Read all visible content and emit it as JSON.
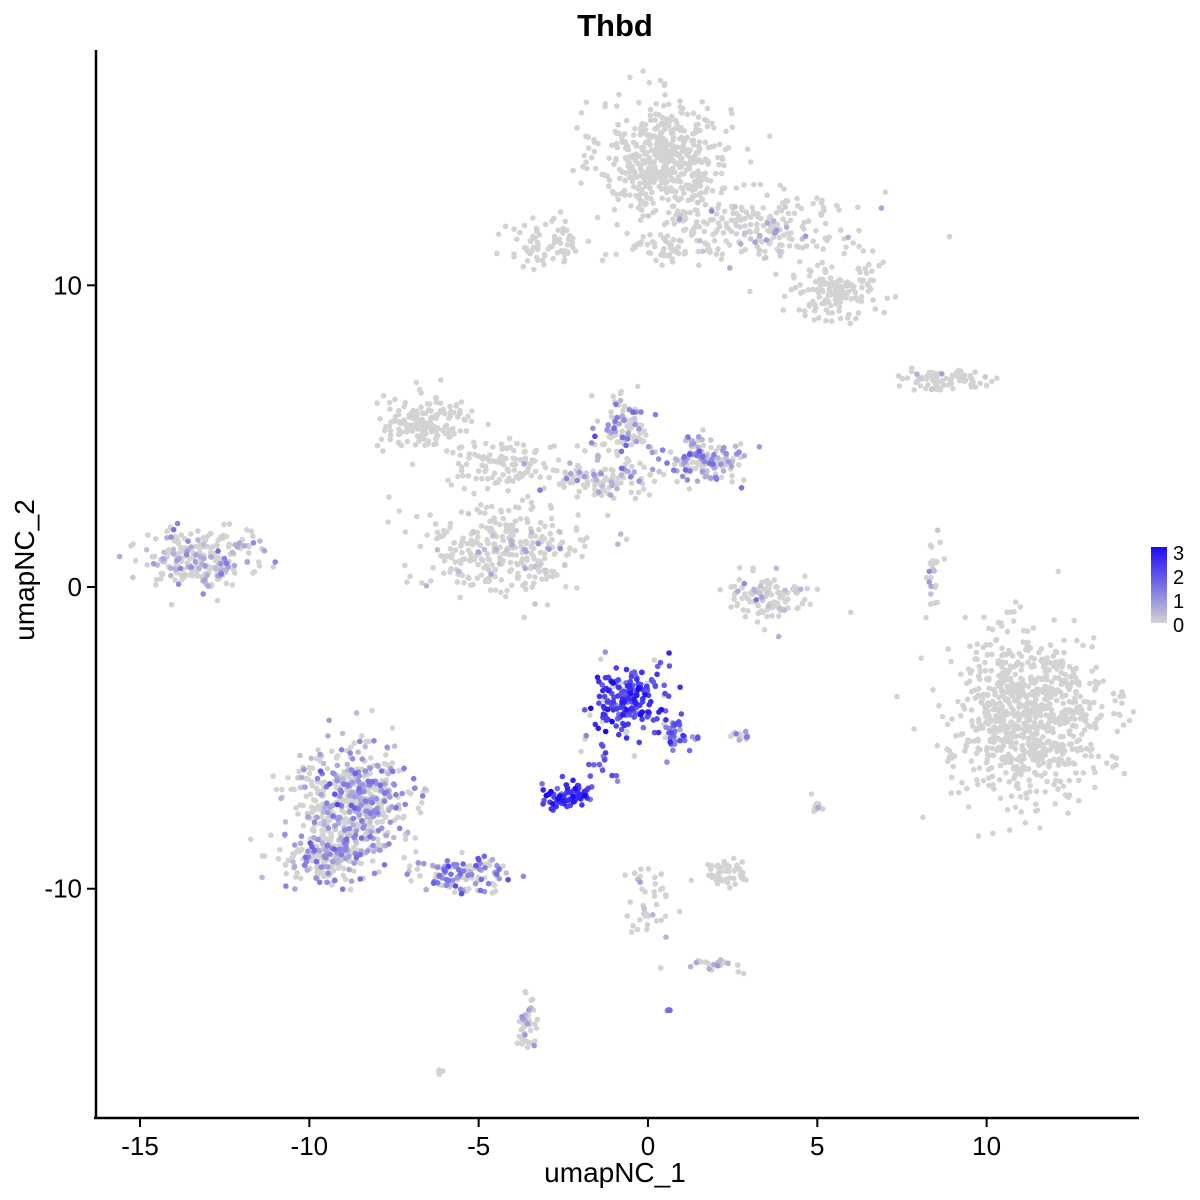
{
  "chart_data": {
    "type": "scatter",
    "title": "Thbd",
    "xlabel": "umapNC_1",
    "ylabel": "umapNC_2",
    "xlim": [
      -16.3,
      14.5
    ],
    "ylim": [
      -17.6,
      17.8
    ],
    "x_ticks": [
      -15,
      -10,
      -5,
      0,
      5,
      10
    ],
    "x_tick_labels": [
      "-15",
      "-10",
      "-5",
      "0",
      "5",
      "10"
    ],
    "y_ticks": [
      -10,
      0,
      10
    ],
    "y_tick_labels": [
      "-10",
      "0",
      "10"
    ],
    "grid": false,
    "legend": {
      "placement": "right",
      "type": "colorbar",
      "range": [
        0,
        3
      ],
      "labels": [
        "3",
        "2",
        "1",
        "0"
      ],
      "low_color": "#d3d3d3",
      "high_color": "#1a09f6"
    },
    "point_color_low": "#d3d3d3",
    "point_color_high": "#1a09f6",
    "clusters": [
      {
        "cx": 0.5,
        "cy": 14.2,
        "sx": 1.2,
        "sy": 1.2,
        "n": 520,
        "expr": 0.0
      },
      {
        "cx": 3.3,
        "cy": 11.9,
        "sx": 1.8,
        "sy": 0.8,
        "n": 230,
        "expr": 0.05
      },
      {
        "cx": 5.5,
        "cy": 9.8,
        "sx": 0.8,
        "sy": 0.6,
        "n": 150,
        "expr": 0.0
      },
      {
        "cx": -3.0,
        "cy": 11.4,
        "sx": 0.8,
        "sy": 0.5,
        "n": 80,
        "expr": 0.0
      },
      {
        "cx": 0.4,
        "cy": 11.2,
        "sx": 0.8,
        "sy": 0.3,
        "n": 40,
        "expr": 0.0
      },
      {
        "cx": 8.7,
        "cy": 6.9,
        "sx": 1.0,
        "sy": 0.2,
        "n": 80,
        "expr": 0.05
      },
      {
        "cx": -6.6,
        "cy": 5.4,
        "sx": 0.9,
        "sy": 0.55,
        "n": 160,
        "expr": 0.0
      },
      {
        "cx": -4.2,
        "cy": 4.1,
        "sx": 1.1,
        "sy": 0.5,
        "n": 110,
        "expr": 0.0
      },
      {
        "cx": -4.3,
        "cy": 1.3,
        "sx": 1.5,
        "sy": 0.9,
        "n": 320,
        "expr": 0.05
      },
      {
        "cx": -0.7,
        "cy": 5.2,
        "sx": 0.5,
        "sy": 0.7,
        "n": 100,
        "expr": 0.9
      },
      {
        "cx": 1.7,
        "cy": 4.2,
        "sx": 0.7,
        "sy": 0.45,
        "n": 160,
        "expr": 0.85
      },
      {
        "cx": -1.5,
        "cy": 3.6,
        "sx": 1.1,
        "sy": 0.4,
        "n": 110,
        "expr": 0.4
      },
      {
        "cx": -13.3,
        "cy": 1.0,
        "sx": 1.1,
        "sy": 0.6,
        "n": 240,
        "expr": 0.5
      },
      {
        "cx": 3.6,
        "cy": -0.3,
        "sx": 0.8,
        "sy": 0.5,
        "n": 110,
        "expr": 0.1
      },
      {
        "cx": 8.4,
        "cy": 0.2,
        "sx": 0.15,
        "sy": 0.7,
        "n": 25,
        "expr": 0.2
      },
      {
        "cx": 11.2,
        "cy": -4.3,
        "sx": 1.4,
        "sy": 1.7,
        "n": 850,
        "expr": 0.0
      },
      {
        "cx": -0.6,
        "cy": -3.7,
        "sx": 0.65,
        "sy": 0.7,
        "n": 210,
        "expr": 2.1
      },
      {
        "cx": 0.8,
        "cy": -4.9,
        "sx": 0.35,
        "sy": 0.4,
        "n": 40,
        "expr": 1.5
      },
      {
        "cx": -2.4,
        "cy": -6.9,
        "sx": 0.45,
        "sy": 0.25,
        "n": 70,
        "expr": 2.3
      },
      {
        "cx": -1.4,
        "cy": -5.6,
        "sx": 0.3,
        "sy": 0.55,
        "n": 20,
        "expr": 1.8
      },
      {
        "cx": -8.7,
        "cy": -7.2,
        "sx": 1.1,
        "sy": 1.2,
        "n": 560,
        "expr": 0.75
      },
      {
        "cx": -9.5,
        "cy": -9.0,
        "sx": 0.9,
        "sy": 0.5,
        "n": 170,
        "expr": 0.7
      },
      {
        "cx": -5.5,
        "cy": -9.5,
        "sx": 1.0,
        "sy": 0.4,
        "n": 120,
        "expr": 1.1
      },
      {
        "cx": 2.7,
        "cy": -5.0,
        "sx": 0.25,
        "sy": 0.1,
        "n": 15,
        "expr": 0.8
      },
      {
        "cx": 2.3,
        "cy": -9.5,
        "sx": 0.4,
        "sy": 0.3,
        "n": 50,
        "expr": 0.0
      },
      {
        "cx": 5.0,
        "cy": -7.2,
        "sx": 0.1,
        "sy": 0.3,
        "n": 12,
        "expr": 0.2
      },
      {
        "cx": 0.0,
        "cy": -10.5,
        "sx": 0.4,
        "sy": 1.0,
        "n": 40,
        "expr": 0.05
      },
      {
        "cx": 2.0,
        "cy": -12.5,
        "sx": 0.5,
        "sy": 0.15,
        "n": 22,
        "expr": 0.2
      },
      {
        "cx": -3.6,
        "cy": -14.6,
        "sx": 0.2,
        "sy": 0.55,
        "n": 40,
        "expr": 0.5
      },
      {
        "cx": 0.6,
        "cy": -14.0,
        "sx": 0.05,
        "sy": 0.05,
        "n": 5,
        "expr": 1.5
      },
      {
        "cx": -6.1,
        "cy": -16.1,
        "sx": 0.08,
        "sy": 0.08,
        "n": 4,
        "expr": 0.0
      },
      {
        "cx": -2.8,
        "cy": 13.5,
        "sx": 0.2,
        "sy": 0.2,
        "n": 0,
        "expr": 0.0
      }
    ]
  }
}
